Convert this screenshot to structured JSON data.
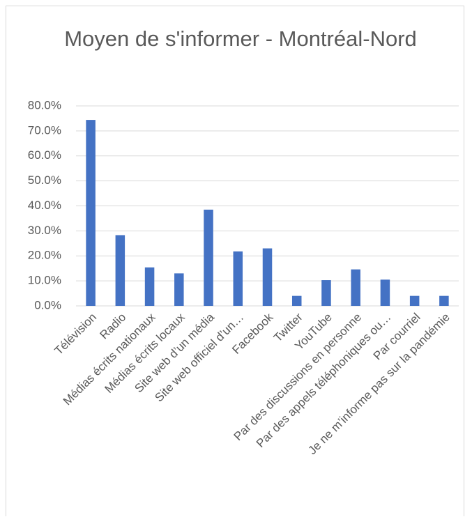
{
  "chart_data": {
    "type": "bar",
    "title": "Moyen de s'informer - Montréal-Nord",
    "categories": [
      "Télévision",
      "Radio",
      "Médias écrits nationaux",
      "Médias écrits locaux",
      "Site web d’un média",
      "Site web officiel d’un…",
      "Facebook",
      "Twitter",
      "YouTube",
      "Par des discussions en personne",
      "Par des appels téléphoniques ou…",
      "Par courriel",
      "Je ne m’informe pas sur la pandémie"
    ],
    "values": [
      74.4,
      28.3,
      15.4,
      13.0,
      38.5,
      21.8,
      23.0,
      4.0,
      10.3,
      14.6,
      10.5,
      4.0,
      4.0
    ],
    "color": "#4472c4",
    "ylim": [
      0,
      80
    ],
    "yticks": [
      {
        "value": 0,
        "label": "0.0%"
      },
      {
        "value": 10,
        "label": "10.0%"
      },
      {
        "value": 20,
        "label": "20.0%"
      },
      {
        "value": 30,
        "label": "30.0%"
      },
      {
        "value": 40,
        "label": "40.0%"
      },
      {
        "value": 50,
        "label": "50.0%"
      },
      {
        "value": 60,
        "label": "60.0%"
      },
      {
        "value": 70,
        "label": "70.0%"
      },
      {
        "value": 80,
        "label": "80.0%"
      }
    ],
    "grid": true
  }
}
